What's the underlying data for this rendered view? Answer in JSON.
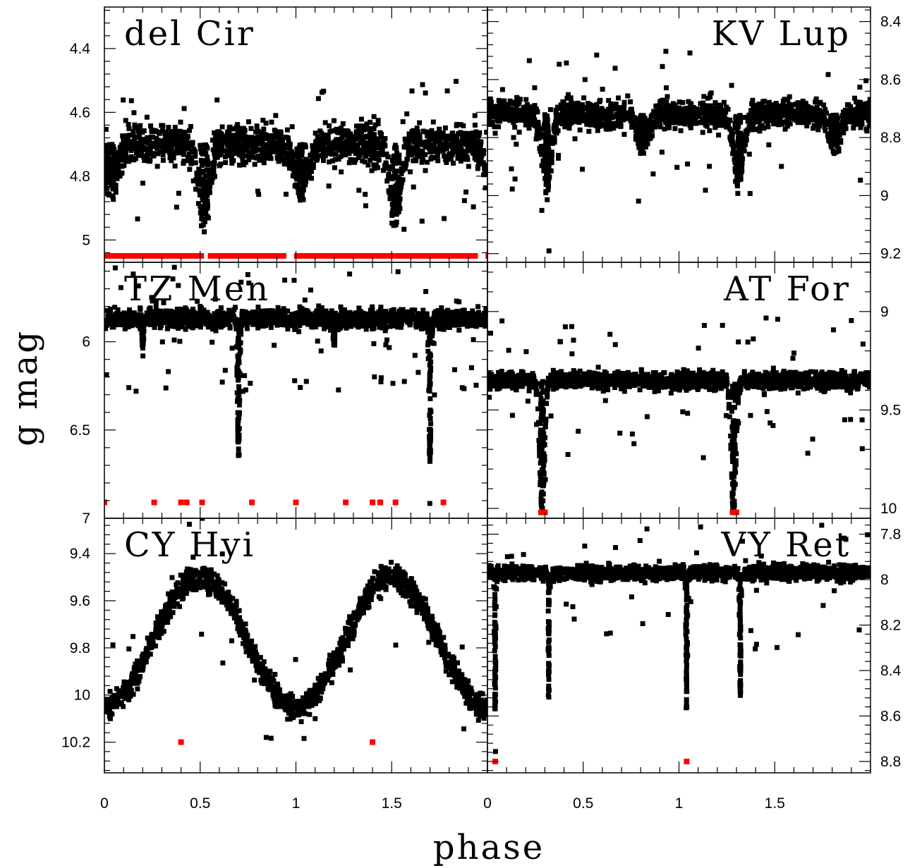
{
  "figure": {
    "xlabel": "phase",
    "ylabel": "g mag",
    "x_ticks": [
      "0",
      "0.5",
      "1",
      "1.5"
    ],
    "x_tick_values": [
      0,
      0.5,
      1,
      1.5
    ]
  },
  "chart_data": [
    {
      "type": "scatter",
      "title": "del Cir",
      "xlim": [
        0,
        2
      ],
      "ylim": [
        5.07,
        4.27
      ],
      "y_ticks": [
        "4.4",
        "4.6",
        "4.8",
        "5"
      ],
      "y_tick_values": [
        4.4,
        4.6,
        4.8,
        5.0
      ],
      "baseline": 4.7,
      "scatter": 0.055,
      "outlier_count": 70,
      "dips": [
        {
          "phase": 0.52,
          "depth": 0.22,
          "width": 0.04
        },
        {
          "phase": 0.03,
          "depth": 0.12,
          "width": 0.05
        }
      ],
      "flagged_value": 5.05,
      "flagged_phases": [
        [
          0.0,
          0.52
        ],
        [
          0.54,
          0.95
        ],
        [
          0.99,
          1.52
        ],
        [
          1.52,
          1.95
        ],
        [
          1.99,
          2.0
        ]
      ],
      "series_colors": {
        "data": "#000000",
        "flagged": "#ff0000"
      }
    },
    {
      "type": "scatter",
      "title": "KV Lup",
      "xlim": [
        0,
        2
      ],
      "ylim": [
        9.23,
        8.35
      ],
      "y_ticks": [
        "8.4",
        "8.6",
        "8.8",
        "9",
        "9.2"
      ],
      "y_tick_values": [
        8.4,
        8.6,
        8.8,
        9.0,
        9.2
      ],
      "baseline": 8.72,
      "scatter": 0.045,
      "outlier_count": 60,
      "dips": [
        {
          "phase": 0.31,
          "depth": 0.23,
          "width": 0.035
        },
        {
          "phase": 0.81,
          "depth": 0.1,
          "width": 0.04
        }
      ],
      "flagged_phases": [],
      "series_colors": {
        "data": "#000000",
        "flagged": "#ff0000"
      }
    },
    {
      "type": "scatter",
      "title": "TZ Men",
      "xlim": [
        0,
        2
      ],
      "ylim": [
        7.0,
        5.55
      ],
      "y_ticks": [
        "6",
        "6.5",
        "7"
      ],
      "y_tick_values": [
        6.0,
        6.5,
        7.0
      ],
      "baseline": 5.87,
      "scatter": 0.05,
      "outlier_count": 90,
      "dips": [
        {
          "phase": 0.7,
          "depth": 0.78,
          "width": 0.008
        },
        {
          "phase": 0.2,
          "depth": 0.15,
          "width": 0.006
        }
      ],
      "flagged_value": 6.91,
      "flagged_points": [
        0.0,
        0.26,
        0.4,
        0.43,
        0.51,
        0.77,
        1.0,
        1.26,
        1.4,
        1.44,
        1.52,
        1.77
      ],
      "series_colors": {
        "data": "#000000",
        "flagged": "#ff0000"
      }
    },
    {
      "type": "scatter",
      "title": "AT For",
      "xlim": [
        0,
        2
      ],
      "ylim": [
        10.05,
        8.75
      ],
      "y_ticks": [
        "9",
        "9.5",
        "10"
      ],
      "y_tick_values": [
        9.0,
        9.5,
        10.0
      ],
      "baseline": 9.35,
      "scatter": 0.04,
      "outlier_count": 80,
      "dips": [
        {
          "phase": 0.285,
          "depth": 0.65,
          "width": 0.018
        }
      ],
      "flagged_value": 10.02,
      "flagged_points": [
        0.28,
        0.3,
        1.28,
        1.3
      ],
      "series_colors": {
        "data": "#000000",
        "flagged": "#ff0000"
      }
    },
    {
      "type": "scatter",
      "title": "CY Hyi",
      "xlim": [
        0,
        2
      ],
      "ylim": [
        10.33,
        9.25
      ],
      "y_ticks": [
        "9.4",
        "9.6",
        "9.8",
        "10",
        "10.2"
      ],
      "y_tick_values": [
        9.4,
        9.6,
        9.8,
        10.0,
        10.2
      ],
      "pulsation": {
        "min_mag": 9.5,
        "max_mag": 10.05,
        "periods_shown": 4
      },
      "scatter": 0.05,
      "outlier_count": 30,
      "flagged_value": 10.2,
      "flagged_points": [
        0.4,
        1.4
      ],
      "series_colors": {
        "data": "#000000",
        "flagged": "#ff0000"
      }
    },
    {
      "type": "scatter",
      "title": "VY Ret",
      "xlim": [
        0,
        2
      ],
      "ylim": [
        8.85,
        7.73
      ],
      "y_ticks": [
        "7.8",
        "8",
        "8.2",
        "8.4",
        "8.6",
        "8.8"
      ],
      "y_tick_values": [
        7.8,
        8.0,
        8.2,
        8.4,
        8.6,
        8.8
      ],
      "baseline": 7.97,
      "scatter": 0.03,
      "outlier_count": 50,
      "dips": [
        {
          "phase": 0.04,
          "depth": 0.6,
          "width": 0.005
        },
        {
          "phase": 0.32,
          "depth": 0.55,
          "width": 0.005
        }
      ],
      "flagged_value": 8.8,
      "flagged_points": [
        0.04,
        1.04
      ],
      "series_colors": {
        "data": "#000000",
        "flagged": "#ff0000"
      }
    }
  ]
}
